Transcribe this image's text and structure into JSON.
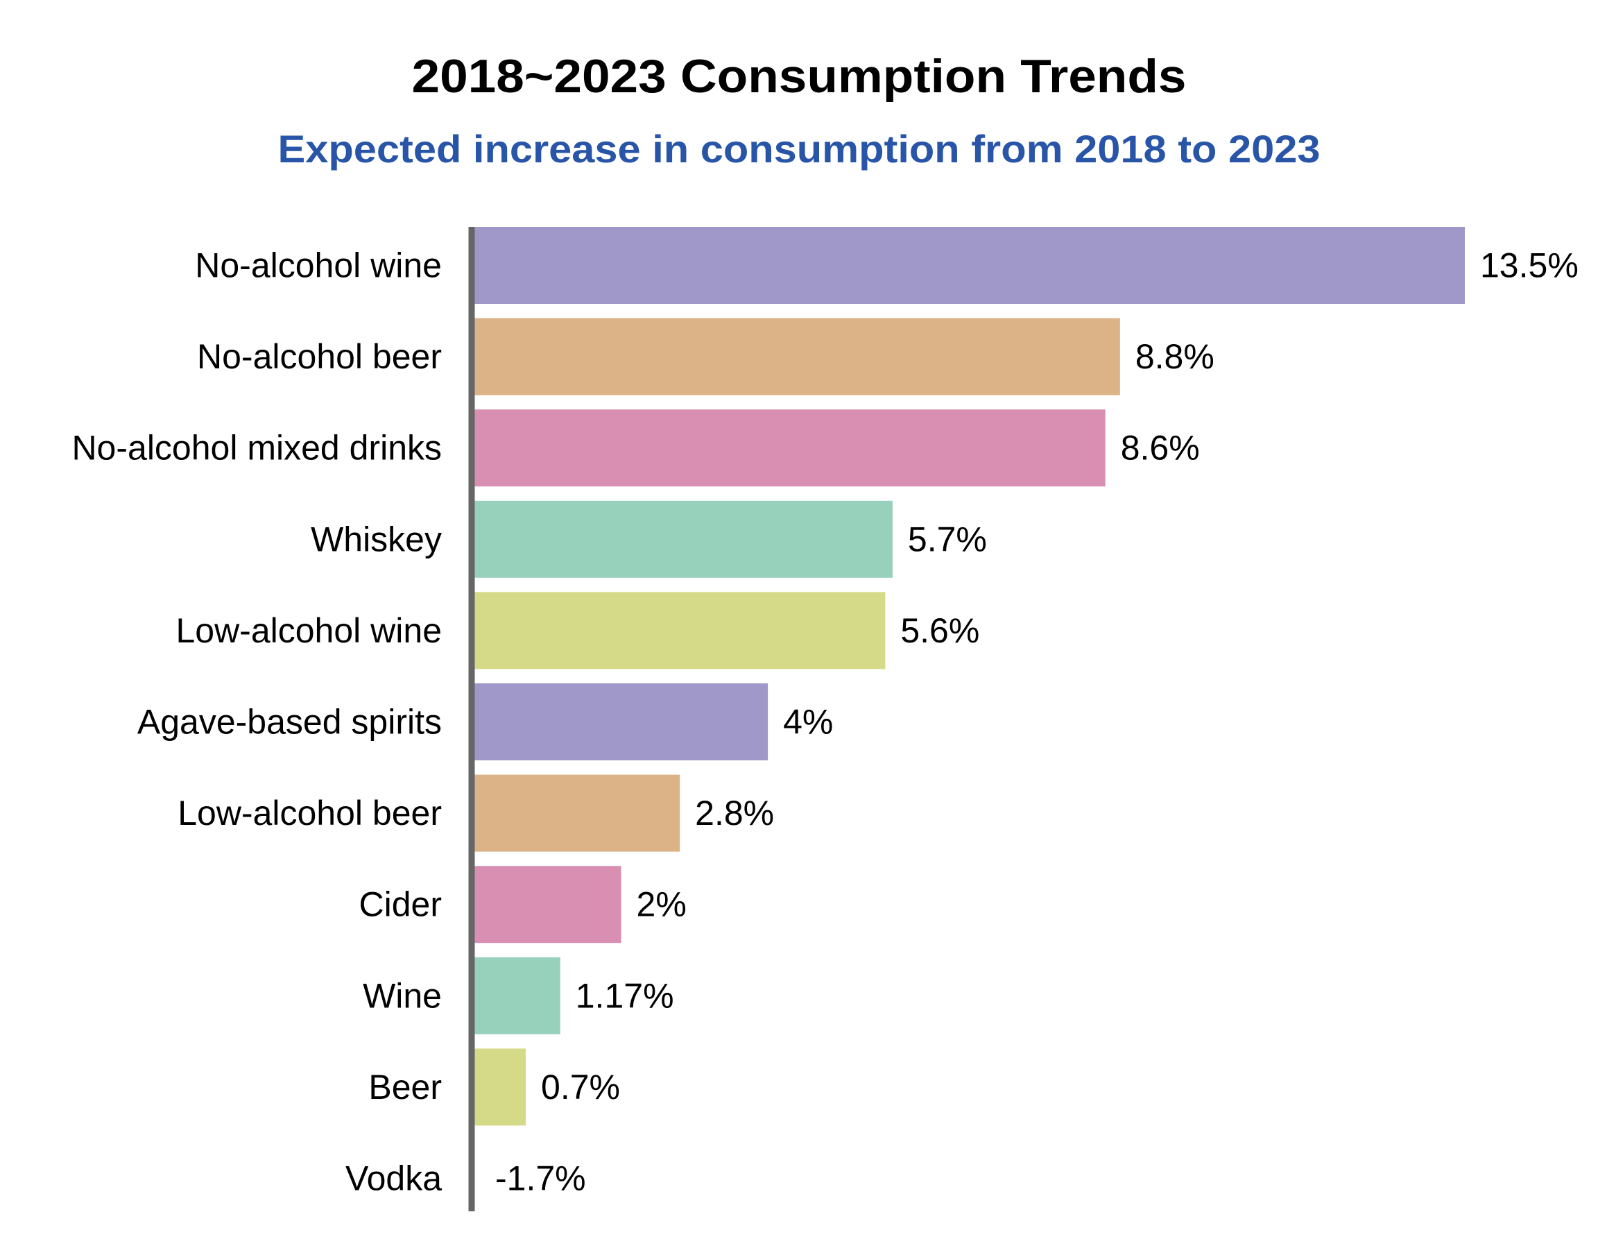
{
  "chart_data": {
    "type": "bar",
    "orientation": "horizontal",
    "title": "2018~2023 Consumption Trends",
    "subtitle": "Expected increase in consumption from 2018 to 2023",
    "xlabel": "",
    "ylabel": "",
    "xlim": [
      0,
      13.5
    ],
    "grid": false,
    "legend": "none",
    "categories": [
      "No-alcohol wine",
      "No-alcohol beer",
      "No-alcohol mixed drinks",
      "Whiskey",
      "Low-alcohol wine",
      "Agave-based spirits",
      "Low-alcohol beer",
      "Cider",
      "Wine",
      "Beer",
      "Vodka"
    ],
    "values": [
      13.5,
      8.8,
      8.6,
      5.7,
      5.6,
      4,
      2.8,
      2,
      1.17,
      0.7,
      -1.7
    ],
    "data_labels": [
      "13.5%",
      "8.8%",
      "8.6%",
      "5.7%",
      "5.6%",
      "4%",
      "2.8%",
      "2%",
      "1.17%",
      "0.7%",
      "-1.7%"
    ],
    "colors": [
      "#a098c9",
      "#dcb287",
      "#d98fb2",
      "#97d1bb",
      "#d5da89",
      "#a098c9",
      "#dcb287",
      "#d98fb2",
      "#97d1bb",
      "#d5da89",
      "#a098c9"
    ],
    "subtitle_color": "#2855a8",
    "axis_color": "#666666"
  }
}
